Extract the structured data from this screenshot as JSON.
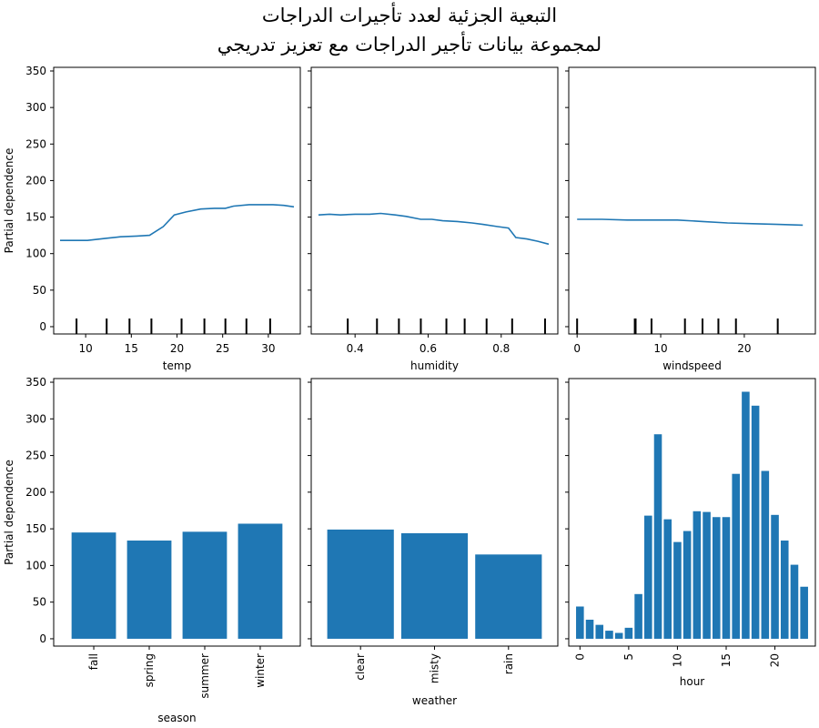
{
  "figure": {
    "title_line1": "التبعية الجزئية لعدد تأجيرات الدراجات",
    "title_line2": "لمجموعة بيانات تأجير الدراجات مع تعزيز تدريجي",
    "ylabel": "Partial dependence",
    "ylim": [
      -10,
      355
    ],
    "yticks": [
      0,
      50,
      100,
      150,
      200,
      250,
      300,
      350
    ],
    "line_color": "#1f77b4",
    "bar_color": "#1f77b4"
  },
  "chart_data": [
    {
      "type": "line",
      "xlabel": "temp",
      "xlim": [
        6.5,
        33.5
      ],
      "xticks": [
        10,
        15,
        20,
        25,
        30
      ],
      "x": [
        7.2,
        9.4,
        10.2,
        12.3,
        13.8,
        15.6,
        17.0,
        18.5,
        19.7,
        21.0,
        22.6,
        24.1,
        25.3,
        26.2,
        27.9,
        29.4,
        30.5,
        31.7,
        32.8
      ],
      "y": [
        118,
        118,
        118,
        121,
        123,
        124,
        125,
        137,
        153,
        157,
        161,
        162,
        162,
        165,
        167,
        167,
        167,
        166,
        164
      ],
      "rug": [
        9.0,
        12.3,
        14.8,
        17.2,
        20.5,
        23.0,
        25.3,
        27.6,
        30.2
      ]
    },
    {
      "type": "line",
      "xlabel": "humidity",
      "xlim": [
        0.28,
        0.955
      ],
      "xticks": [
        0.4,
        0.6,
        0.8
      ],
      "xtick_labels": [
        "0.4",
        "0.6",
        "0.8"
      ],
      "x": [
        0.3,
        0.33,
        0.36,
        0.4,
        0.44,
        0.47,
        0.51,
        0.54,
        0.58,
        0.61,
        0.64,
        0.68,
        0.72,
        0.75,
        0.79,
        0.82,
        0.84,
        0.87,
        0.9,
        0.93
      ],
      "y": [
        153,
        154,
        153,
        154,
        154,
        155,
        153,
        151,
        147,
        147,
        145,
        144,
        142,
        140,
        137,
        135,
        122,
        120,
        117,
        113
      ],
      "rug": [
        0.38,
        0.46,
        0.52,
        0.58,
        0.65,
        0.7,
        0.76,
        0.83,
        0.92
      ]
    },
    {
      "type": "line",
      "xlabel": "windspeed",
      "xlim": [
        -1.0,
        28.5
      ],
      "xticks": [
        0,
        10,
        20
      ],
      "x": [
        0,
        3,
        6,
        9,
        12,
        15,
        18,
        21,
        24,
        27
      ],
      "y": [
        147,
        147,
        146,
        146,
        146,
        144,
        142,
        141,
        140,
        139
      ],
      "rug": [
        0.0,
        6.9,
        7.0,
        8.9,
        12.9,
        15.0,
        16.9,
        19.0,
        24.0
      ]
    },
    {
      "type": "bar",
      "xlabel": "season",
      "categories": [
        "fall",
        "spring",
        "summer",
        "winter"
      ],
      "values": [
        145,
        134,
        146,
        157
      ]
    },
    {
      "type": "bar",
      "xlabel": "weather",
      "categories": [
        "clear",
        "misty",
        "rain"
      ],
      "values": [
        149,
        144,
        115
      ]
    },
    {
      "type": "bar",
      "xlabel": "hour",
      "xticks": [
        0,
        5,
        10,
        15,
        20
      ],
      "categories": [
        0,
        1,
        2,
        3,
        4,
        5,
        6,
        7,
        8,
        9,
        10,
        11,
        12,
        13,
        14,
        15,
        16,
        17,
        18,
        19,
        20,
        21,
        22,
        23
      ],
      "values": [
        44,
        26,
        19,
        11,
        8,
        15,
        61,
        168,
        279,
        163,
        132,
        147,
        174,
        173,
        166,
        166,
        225,
        337,
        318,
        229,
        169,
        134,
        101,
        71
      ]
    }
  ]
}
